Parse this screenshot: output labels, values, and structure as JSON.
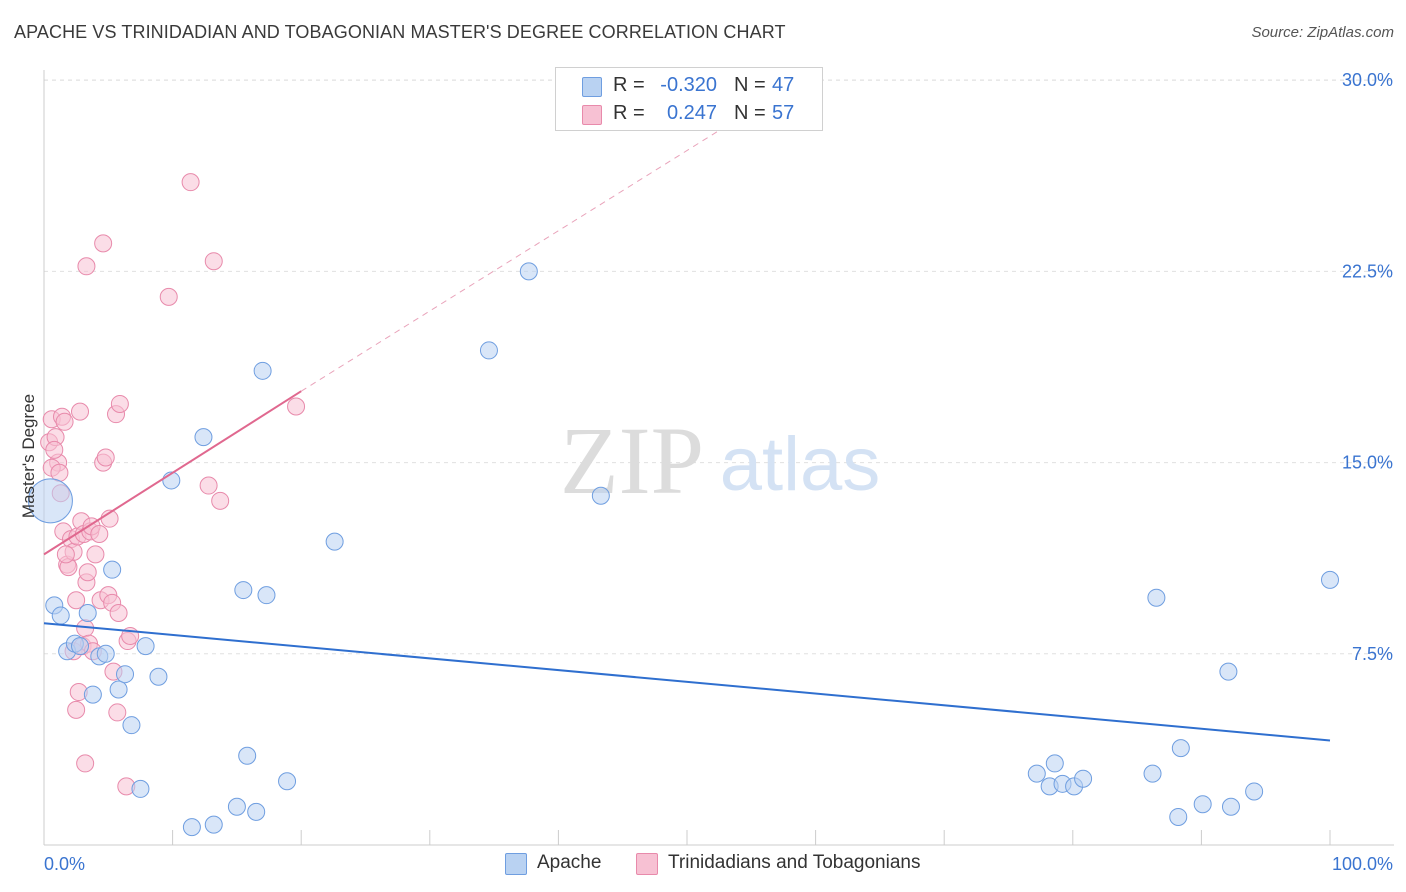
{
  "header": {
    "title": "APACHE VS TRINIDADIAN AND TOBAGONIAN MASTER'S DEGREE CORRELATION CHART",
    "source": "Source: ZipAtlas.com"
  },
  "watermark": {
    "zip": "ZIP",
    "atlas": "atlas"
  },
  "legend": {
    "series": [
      {
        "r_label": "R =",
        "r_value": "-0.320",
        "n_label": "N =",
        "n_value": "47"
      },
      {
        "r_label": "R =",
        "r_value": "0.247",
        "n_label": "N =",
        "n_value": "57"
      }
    ]
  },
  "bottom_legend": {
    "items": [
      "Apache",
      "Trinidadians and Tobagonians"
    ]
  },
  "colors": {
    "apache_fill": "#b9d2f2",
    "apache_stroke": "#6f9ee0",
    "apache_line": "#2f6fcf",
    "trini_fill": "#f7c1d3",
    "trini_stroke": "#e88aab",
    "trini_line": "#e0688f",
    "axis_label": "#3a74d0"
  },
  "chart_data": {
    "type": "scatter",
    "title": "APACHE VS TRINIDADIAN AND TOBAGONIAN MASTER'S DEGREE CORRELATION CHART",
    "xlabel": "",
    "ylabel": "Master's Degree",
    "xlim": [
      0,
      100
    ],
    "ylim": [
      0,
      30.4
    ],
    "x_tick_labels": [
      "0.0%",
      "100.0%"
    ],
    "y_ticks": [
      7.5,
      15.0,
      22.5,
      30.0
    ],
    "y_tick_labels": [
      "7.5%",
      "15.0%",
      "22.5%",
      "30.0%"
    ],
    "grid": true,
    "legend_position": "top-center",
    "series": [
      {
        "name": "Apache",
        "trend": {
          "x": [
            0,
            100
          ],
          "y": [
            8.7,
            4.1
          ]
        },
        "points": [
          [
            0.8,
            9.4
          ],
          [
            1.3,
            9.0
          ],
          [
            1.8,
            7.6
          ],
          [
            2.4,
            7.9
          ],
          [
            2.8,
            7.8
          ],
          [
            3.4,
            9.1
          ],
          [
            3.8,
            5.9
          ],
          [
            4.3,
            7.4
          ],
          [
            4.8,
            7.5
          ],
          [
            5.3,
            10.8
          ],
          [
            5.8,
            6.1
          ],
          [
            6.3,
            6.7
          ],
          [
            6.8,
            4.7
          ],
          [
            7.5,
            2.2
          ],
          [
            7.9,
            7.8
          ],
          [
            8.9,
            6.6
          ],
          [
            9.9,
            14.3
          ],
          [
            11.5,
            0.7
          ],
          [
            12.4,
            16.0
          ],
          [
            13.2,
            0.8
          ],
          [
            15.0,
            1.5
          ],
          [
            15.5,
            10.0
          ],
          [
            15.8,
            3.5
          ],
          [
            16.5,
            1.3
          ],
          [
            17.0,
            18.6
          ],
          [
            17.3,
            9.8
          ],
          [
            18.9,
            2.5
          ],
          [
            22.6,
            11.9
          ],
          [
            34.6,
            19.4
          ],
          [
            37.7,
            22.5
          ],
          [
            43.3,
            13.7
          ],
          [
            77.2,
            2.8
          ],
          [
            78.2,
            2.3
          ],
          [
            78.6,
            3.2
          ],
          [
            79.2,
            2.4
          ],
          [
            80.1,
            2.3
          ],
          [
            80.8,
            2.6
          ],
          [
            86.5,
            9.7
          ],
          [
            86.2,
            2.8
          ],
          [
            88.2,
            1.1
          ],
          [
            88.4,
            3.8
          ],
          [
            90.1,
            1.6
          ],
          [
            92.1,
            6.8
          ],
          [
            92.3,
            1.5
          ],
          [
            94.1,
            2.1
          ],
          [
            100.0,
            10.4
          ],
          [
            0.5,
            13.5
          ]
        ]
      },
      {
        "name": "Trinidadians and Tobagonians",
        "trend": {
          "x": [
            0,
            20
          ],
          "y": [
            11.4,
            17.8
          ]
        },
        "trend_extended": {
          "x": [
            20,
            54
          ],
          "y": [
            17.8,
            28.5
          ]
        },
        "points": [
          [
            0.4,
            15.8
          ],
          [
            0.6,
            16.7
          ],
          [
            0.9,
            16.0
          ],
          [
            1.1,
            15.0
          ],
          [
            0.8,
            15.5
          ],
          [
            0.6,
            14.8
          ],
          [
            1.2,
            14.6
          ],
          [
            1.4,
            16.8
          ],
          [
            1.6,
            16.6
          ],
          [
            1.3,
            13.8
          ],
          [
            1.5,
            12.3
          ],
          [
            1.8,
            11.0
          ],
          [
            1.9,
            10.9
          ],
          [
            2.1,
            12.0
          ],
          [
            2.3,
            11.5
          ],
          [
            1.7,
            11.4
          ],
          [
            2.6,
            12.1
          ],
          [
            2.5,
            9.6
          ],
          [
            2.7,
            6.0
          ],
          [
            2.5,
            5.3
          ],
          [
            2.3,
            7.6
          ],
          [
            2.9,
            12.7
          ],
          [
            3.1,
            12.2
          ],
          [
            2.8,
            17.0
          ],
          [
            3.3,
            10.3
          ],
          [
            3.4,
            10.7
          ],
          [
            3.0,
            7.8
          ],
          [
            3.2,
            8.5
          ],
          [
            3.5,
            7.9
          ],
          [
            3.6,
            12.3
          ],
          [
            3.8,
            7.6
          ],
          [
            3.2,
            3.2
          ],
          [
            3.3,
            22.7
          ],
          [
            3.7,
            12.5
          ],
          [
            4.0,
            11.4
          ],
          [
            4.3,
            12.2
          ],
          [
            4.6,
            15.0
          ],
          [
            4.8,
            15.2
          ],
          [
            4.4,
            9.6
          ],
          [
            4.6,
            23.6
          ],
          [
            5.0,
            9.8
          ],
          [
            5.1,
            12.8
          ],
          [
            5.3,
            9.5
          ],
          [
            5.4,
            6.8
          ],
          [
            5.6,
            16.9
          ],
          [
            5.7,
            5.2
          ],
          [
            5.9,
            17.3
          ],
          [
            5.8,
            9.1
          ],
          [
            6.4,
            2.3
          ],
          [
            6.5,
            8.0
          ],
          [
            6.7,
            8.2
          ],
          [
            9.7,
            21.5
          ],
          [
            11.4,
            26.0
          ],
          [
            12.8,
            14.1
          ],
          [
            13.2,
            22.9
          ],
          [
            13.7,
            13.5
          ],
          [
            19.6,
            17.2
          ]
        ]
      }
    ]
  }
}
